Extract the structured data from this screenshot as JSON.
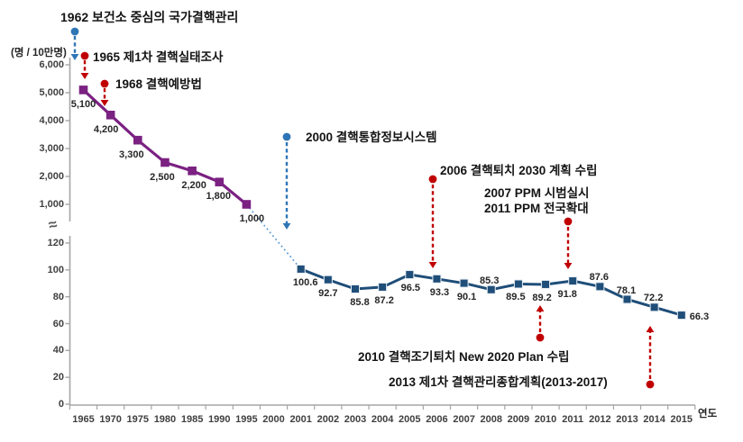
{
  "chart_data": {
    "type": "line",
    "title": "",
    "y_axis_unit": "(명 / 10만명)",
    "xlabel": "연도",
    "axis_break_symbol": "≈",
    "grid": false,
    "legend": "none",
    "categories": [
      "1965",
      "1970",
      "1975",
      "1980",
      "1985",
      "1990",
      "1995",
      "2000",
      "2001",
      "2002",
      "2003",
      "2004",
      "2005",
      "2006",
      "2007",
      "2008",
      "2009",
      "2010",
      "2011",
      "2012",
      "2013",
      "2014",
      "2015"
    ],
    "upper_axis": {
      "range": [
        1000,
        6000
      ],
      "ticks": [
        6000,
        5000,
        4000,
        3000,
        2000,
        1000
      ],
      "tick_labels": [
        "6,000",
        "5,000",
        "4,000",
        "3,000",
        "2,000",
        "1,000"
      ]
    },
    "lower_axis": {
      "range": [
        0,
        120
      ],
      "ticks": [
        120,
        100,
        80,
        60,
        40,
        20,
        0
      ],
      "tick_labels": [
        "120",
        "100",
        "80",
        "60",
        "40",
        "20",
        "0"
      ]
    },
    "series": [
      {
        "name": "tb-rate-1965-1995",
        "axis": "upper",
        "color": "#7B2182",
        "marker": "square",
        "categories": [
          "1965",
          "1970",
          "1975",
          "1980",
          "1985",
          "1990",
          "1995"
        ],
        "values": [
          5100,
          4200,
          3300,
          2500,
          2200,
          1800,
          1000
        ],
        "labels": [
          "5,100",
          "4,200",
          "3,300",
          "2,500",
          "2,200",
          "1,800",
          "1,000"
        ]
      },
      {
        "name": "tb-rate-2001-2015",
        "axis": "lower",
        "color": "#1F4E79",
        "marker": "square",
        "categories": [
          "2001",
          "2002",
          "2003",
          "2004",
          "2005",
          "2006",
          "2007",
          "2008",
          "2009",
          "2010",
          "2011",
          "2012",
          "2013",
          "2014",
          "2015"
        ],
        "values": [
          100.6,
          92.7,
          85.8,
          87.2,
          96.5,
          93.3,
          90.1,
          85.3,
          89.5,
          89.2,
          91.8,
          87.6,
          78.1,
          72.2,
          66.3
        ],
        "labels": [
          "100.6",
          "92.7",
          "85.8",
          "87.2",
          "96.5",
          "93.3",
          "90.1",
          "85.3",
          "89.5",
          "89.2",
          "91.8",
          "87.6",
          "78.1",
          "72.2",
          "66.3"
        ]
      }
    ],
    "connector": {
      "from": "1995",
      "to": "2001",
      "style": "dotted",
      "color": "#5B9BD5"
    },
    "annotations": {
      "a1962": {
        "text": "1962 보건소 중심의 국가결핵관리",
        "arrow": "blue-dashed-down"
      },
      "a1965": {
        "text": "1965 제1차 결핵실태조사",
        "arrow": "red-dashed-down"
      },
      "a1968": {
        "text": "1968 결핵예방법",
        "arrow": "red-dashed-down"
      },
      "a2000": {
        "text": "2000 결핵통합정보시스템",
        "arrow": "blue-dashed-down"
      },
      "a2006": {
        "text": "2006 결핵퇴치 2030 계획 수립",
        "arrow": "red-dashed-down"
      },
      "a2007": {
        "text": "2007 PPM 시범실시",
        "arrow": "red-dashed-down"
      },
      "a2011": {
        "text": "2011 PPM 전국확대",
        "arrow": "red-dashed-down"
      },
      "a2010": {
        "text": "2010 결핵조기퇴치 New 2020 Plan 수립",
        "arrow": "red-dashed-up"
      },
      "a2013": {
        "text": "2013 제1차 결핵관리종합계획(2013-2017)",
        "arrow": "red-dashed-up"
      }
    }
  },
  "colors": {
    "series_upper": "#7B2182",
    "series_lower": "#1F4E79",
    "marker_lower_edge": "#E8EEF4",
    "connector": "#5B9BD5",
    "annotation_red": "#C00000",
    "annotation_blue": "#2E75B6",
    "axis_line": "#A6A6A6",
    "tick_text": "#3F3F3F",
    "label_text": "#262626",
    "background": "#FFFFFF"
  }
}
